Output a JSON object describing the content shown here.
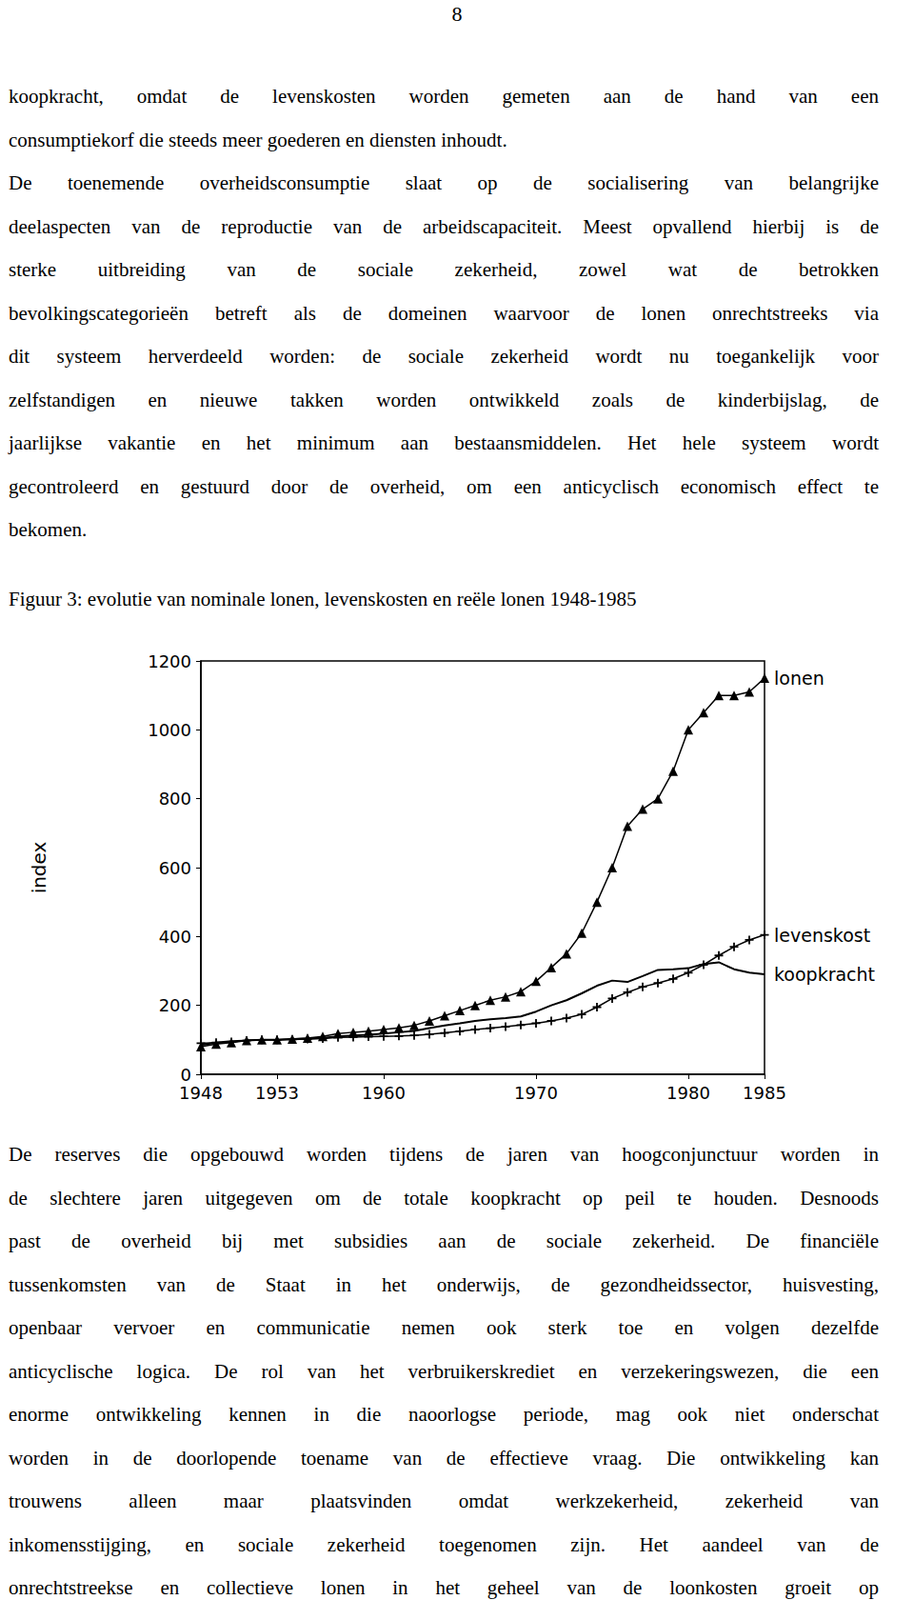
{
  "page_number": "8",
  "text_before": [
    [
      "koopkracht, omdat de levenskosten worden gemeten aan de hand van een",
      "consumptiekorf die steeds meer goederen en diensten inhoudt."
    ],
    [
      "De toenemende overheidsconsumptie slaat op de socialisering van belangrijke",
      "deelaspecten van de reproductie van de arbeidscapaciteit. Meest opvallend hierbij is de",
      "sterke uitbreiding van de sociale zekerheid, zowel wat de betrokken",
      "bevolkingscategorieën betreft als de domeinen waarvoor de lonen onrechtstreeks via",
      "dit systeem herverdeeld worden: de sociale zekerheid wordt nu toegankelijk voor",
      "zelfstandigen en nieuwe takken worden ontwikkeld zoals de kinderbijslag, de",
      "jaarlijkse vakantie en het minimum aan bestaansmiddelen. Het hele systeem wordt",
      "gecontroleerd en gestuurd door de overheid, om een anticyclisch economisch effect te",
      "bekomen."
    ]
  ],
  "figure_caption": "Figuur 3: evolutie van nominale lonen, levenskosten en reële lonen 1948-1985",
  "chart_data": {
    "type": "line",
    "y_label": "index",
    "x": [
      1948,
      1949,
      1950,
      1951,
      1952,
      1953,
      1954,
      1955,
      1956,
      1957,
      1958,
      1959,
      1960,
      1961,
      1962,
      1963,
      1964,
      1965,
      1966,
      1967,
      1968,
      1969,
      1970,
      1971,
      1972,
      1973,
      1974,
      1975,
      1976,
      1977,
      1978,
      1979,
      1980,
      1981,
      1982,
      1983,
      1984,
      1985
    ],
    "series": [
      {
        "name": "lonen",
        "color": "#000000",
        "marker": "triangle",
        "line_style": "solid",
        "values": [
          80,
          88,
          92,
          98,
          100,
          100,
          102,
          105,
          110,
          118,
          122,
          125,
          130,
          135,
          142,
          155,
          170,
          185,
          200,
          215,
          225,
          240,
          270,
          310,
          350,
          410,
          500,
          600,
          720,
          770,
          800,
          880,
          1000,
          1050,
          1100,
          1100,
          1110,
          1150
        ]
      },
      {
        "name": "levenskost",
        "color": "#000000",
        "marker": "plus",
        "line_style": "solid",
        "values": [
          90,
          92,
          94,
          98,
          100,
          100,
          101,
          102,
          104,
          107,
          108,
          109,
          110,
          111,
          113,
          116,
          120,
          125,
          130,
          134,
          138,
          143,
          148,
          155,
          163,
          174,
          195,
          220,
          238,
          254,
          265,
          277,
          295,
          318,
          345,
          370,
          390,
          405
        ]
      },
      {
        "name": "koopkracht",
        "color": "#000000",
        "marker": "none",
        "line_style": "solid",
        "values": [
          85,
          92,
          96,
          98,
          100,
          100,
          102,
          104,
          106,
          110,
          113,
          115,
          118,
          122,
          126,
          134,
          142,
          148,
          155,
          160,
          163,
          168,
          182,
          200,
          215,
          235,
          257,
          272,
          268,
          285,
          303,
          305,
          308,
          320,
          325,
          305,
          295,
          290
        ]
      }
    ],
    "xlim": [
      1948,
      1985
    ],
    "xticks": [
      1948,
      1953,
      1960,
      1970,
      1980,
      1985
    ],
    "ylim": [
      0,
      1200
    ],
    "yticks": [
      0,
      200,
      400,
      600,
      800,
      1000,
      1200
    ],
    "grid": false
  },
  "text_after": [
    [
      "De reserves die opgebouwd worden tijdens de jaren van hoogconjunctuur worden in",
      "de slechtere jaren uitgegeven om de totale koopkracht op peil te houden. Desnoods",
      "past de overheid bij met subsidies aan de sociale zekerheid. De financiële",
      "tussenkomsten van de Staat in het onderwijs, de gezondheidssector, huisvesting,",
      "openbaar vervoer en communicatie nemen ook sterk toe en volgen dezelfde",
      "anticyclische logica. De rol van het verbruikerskrediet en verzekeringswezen, die een",
      "enorme ontwikkeling kennen in die naoorlogse periode, mag ook niet onderschat",
      "worden in de doorlopende toename van de effectieve vraag. Die ontwikkeling kan",
      "trouwens alleen maar plaatsvinden omdat werkzekerheid, zekerheid van",
      "inkomensstijging, en sociale zekerheid toegenomen zijn. Het aandeel van de",
      "onrechtstreekse en collectieve lonen in het geheel van de loonkosten groeit op"
    ]
  ]
}
